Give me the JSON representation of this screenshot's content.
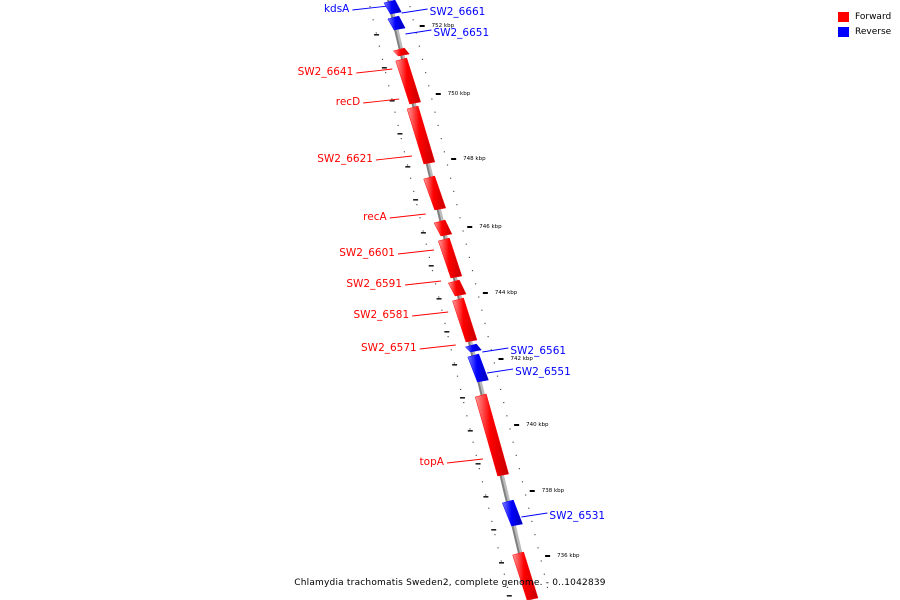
{
  "caption": "Chlamydia trachomatis Sweden2, complete genome. - 0..1042839",
  "legend": [
    {
      "label": "Forward",
      "color": "#ff0000"
    },
    {
      "label": "Reverse",
      "color": "#0000ff"
    }
  ],
  "colors": {
    "forward": "#ff0000",
    "reverse": "#0000ff",
    "backbone": "#808080"
  },
  "ticks": [
    "752 kbp",
    "750 kbp",
    "748 kbp",
    "746 kbp",
    "744 kbp",
    "742 kbp",
    "740 kbp",
    "738 kbp",
    "736 kbp"
  ],
  "genes": [
    {
      "name": "kdsA",
      "strand": "reverse"
    },
    {
      "name": "SW2_6661",
      "strand": "reverse"
    },
    {
      "name": "SW2_6651",
      "strand": "reverse"
    },
    {
      "name": "SW2_6641",
      "strand": "forward"
    },
    {
      "name": "recD",
      "strand": "forward"
    },
    {
      "name": "SW2_6621",
      "strand": "forward"
    },
    {
      "name": "recA",
      "strand": "forward"
    },
    {
      "name": "SW2_6601",
      "strand": "forward"
    },
    {
      "name": "SW2_6591",
      "strand": "forward"
    },
    {
      "name": "SW2_6581",
      "strand": "forward"
    },
    {
      "name": "SW2_6571",
      "strand": "forward"
    },
    {
      "name": "SW2_6561",
      "strand": "reverse"
    },
    {
      "name": "SW2_6551",
      "strand": "reverse"
    },
    {
      "name": "topA",
      "strand": "forward"
    },
    {
      "name": "SW2_6531",
      "strand": "reverse"
    },
    {
      "name": "",
      "strand": "forward"
    }
  ]
}
